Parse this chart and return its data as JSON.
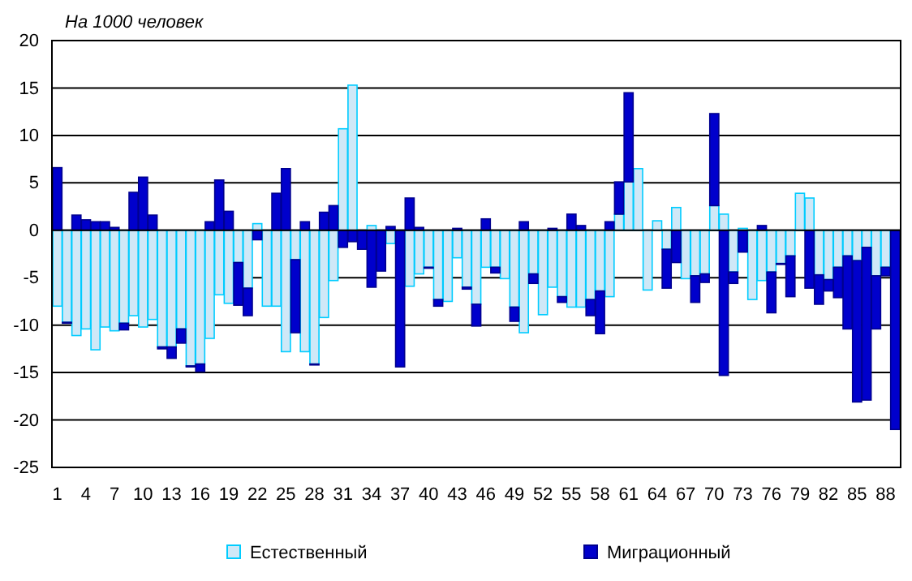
{
  "chart_data": {
    "type": "bar",
    "stacked": true,
    "title": "На 1000 человек",
    "categories": [
      "1",
      null,
      null,
      "4",
      null,
      null,
      "7",
      null,
      null,
      "10",
      null,
      null,
      "13",
      null,
      null,
      "16",
      null,
      null,
      "19",
      null,
      null,
      "22",
      null,
      null,
      "25",
      null,
      null,
      "28",
      null,
      null,
      "31",
      null,
      null,
      "34",
      null,
      null,
      "37",
      null,
      null,
      "40",
      null,
      null,
      "43",
      null,
      null,
      "46",
      null,
      null,
      "49",
      null,
      null,
      "52",
      null,
      null,
      "55",
      null,
      null,
      "58",
      null,
      null,
      "61",
      null,
      null,
      "64",
      null,
      null,
      "67",
      null,
      null,
      "70",
      null,
      null,
      "73",
      null,
      null,
      "76",
      null,
      null,
      "79",
      null,
      null,
      "82",
      null,
      null,
      "85",
      null,
      null,
      "88",
      null
    ],
    "series": [
      {
        "name": "Естественный",
        "color": "#cfe8f7",
        "values": [
          -8.0,
          -9.7,
          -11.1,
          -10.4,
          -12.6,
          -10.2,
          -10.6,
          -9.8,
          -9.0,
          -10.2,
          -9.4,
          -12.3,
          -12.3,
          -10.4,
          -14.3,
          -14.1,
          -11.4,
          -6.8,
          -7.7,
          -3.4,
          -6.1,
          0.7,
          -8.0,
          -8.0,
          -12.8,
          -3.1,
          -12.8,
          -14.1,
          -9.2,
          -5.3,
          10.7,
          15.3,
          0,
          0.5,
          0,
          -1.4,
          0,
          -5.9,
          -4.6,
          -3.9,
          -7.3,
          -7.5,
          -2.9,
          -6.0,
          -7.8,
          -3.9,
          -3.9,
          -5.1,
          -8.1,
          -10.8,
          -4.6,
          -8.9,
          -6.0,
          -7.0,
          -8.1,
          -8.1,
          -7.3,
          -6.4,
          -7.0,
          1.7,
          5.1,
          6.5,
          -6.3,
          1.0,
          -2.0,
          2.4,
          -5.1,
          -4.8,
          -4.6,
          2.6,
          1.7,
          -4.4,
          0.2,
          -7.3,
          -5.3,
          -4.4,
          -3.5,
          -2.7,
          3.9,
          3.4,
          -4.7,
          -5.2,
          -3.9,
          -2.7,
          -3.2,
          -1.8,
          -4.8,
          -3.9,
          null
        ]
      },
      {
        "name": "Миграционный",
        "color": "#0000cc",
        "values": [
          6.6,
          -0.1,
          1.6,
          1.1,
          0.9,
          0.9,
          0.3,
          -0.7,
          4.0,
          5.6,
          1.6,
          -0.2,
          -1.2,
          -1.5,
          -0.1,
          -0.8,
          0.9,
          5.3,
          2.0,
          -4.5,
          -2.9,
          -1.0,
          null,
          3.9,
          6.5,
          -7.7,
          0.9,
          -0.1,
          1.9,
          2.6,
          -1.8,
          -1.2,
          -2.0,
          -6.0,
          -4.3,
          0.4,
          -14.4,
          3.4,
          0.3,
          -0.1,
          -0.7,
          null,
          0.2,
          -0.2,
          -2.3,
          1.2,
          -0.6,
          0,
          -1.5,
          0.9,
          -1.0,
          0,
          0.2,
          -0.6,
          1.7,
          0.5,
          -1.7,
          -4.5,
          0.9,
          3.4,
          9.4,
          0,
          0,
          0,
          -4.1,
          -3.4,
          null,
          -2.8,
          -0.9,
          9.7,
          -15.3,
          -1.2,
          -2.3,
          0,
          0.5,
          -4.3,
          -0.1,
          -4.3,
          0,
          -6.1,
          -3.1,
          -1.2,
          -3.2,
          -7.7,
          -14.9,
          -16.1,
          -5.6,
          -0.9,
          -21.0
        ]
      }
    ],
    "ylim": [
      -25,
      20
    ],
    "yticks": [
      -25,
      -20,
      -15,
      -10,
      -5,
      0,
      5,
      10,
      15,
      20
    ],
    "grid": "y",
    "legend": "bottom"
  }
}
